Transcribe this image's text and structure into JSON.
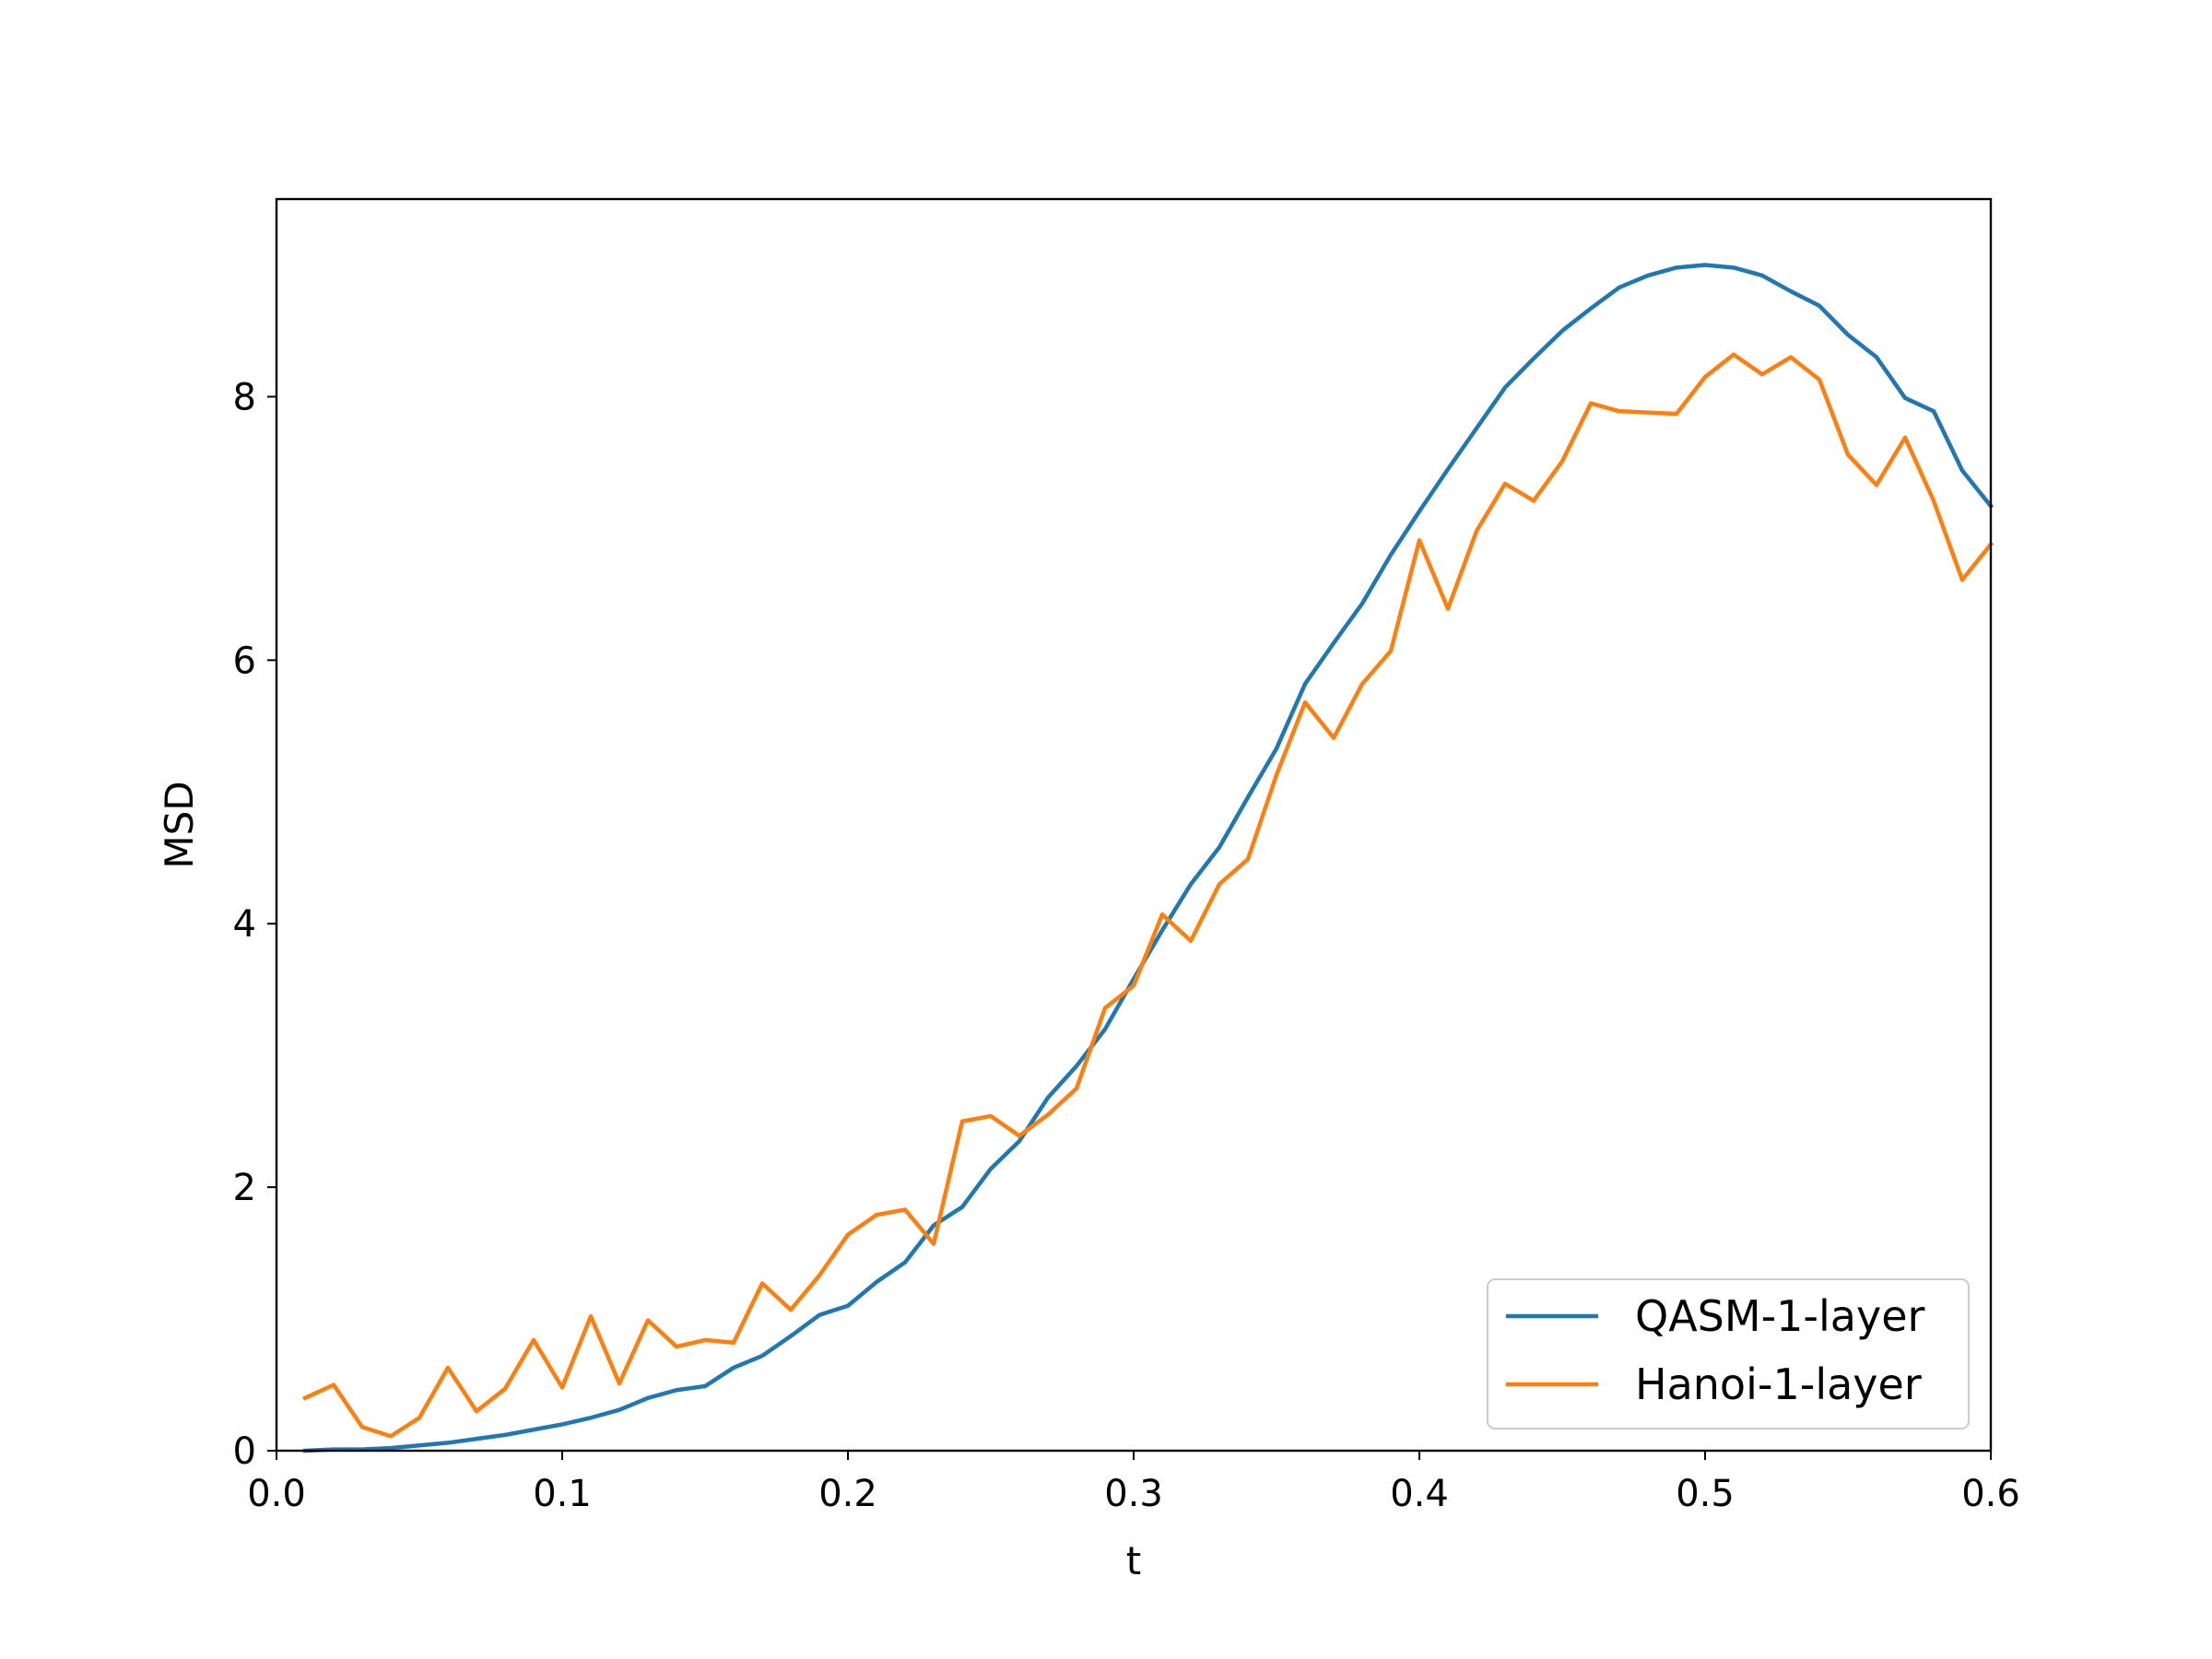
{
  "chart_data": {
    "type": "line",
    "title": "",
    "xlabel": "t",
    "ylabel": "MSD",
    "xlim": [
      0.0,
      0.6
    ],
    "ylim": [
      0,
      9.5
    ],
    "xticks": [
      0.0,
      0.1,
      0.2,
      0.3,
      0.4,
      0.5,
      0.6
    ],
    "xtick_labels": [
      "0.0",
      "0.1",
      "0.2",
      "0.3",
      "0.4",
      "0.5",
      "0.6"
    ],
    "yticks": [
      0,
      2,
      4,
      6,
      8
    ],
    "ytick_labels": [
      "0",
      "2",
      "4",
      "6",
      "8"
    ],
    "grid": false,
    "legend_position": "lower-right",
    "x": [
      0.01,
      0.02,
      0.03,
      0.04,
      0.05,
      0.06,
      0.07,
      0.08,
      0.09,
      0.1,
      0.11,
      0.12,
      0.13,
      0.14,
      0.15,
      0.16,
      0.17,
      0.18,
      0.19,
      0.2,
      0.21,
      0.22,
      0.23,
      0.24,
      0.25,
      0.26,
      0.27,
      0.28,
      0.29,
      0.3,
      0.31,
      0.32,
      0.33,
      0.34,
      0.35,
      0.36,
      0.37,
      0.38,
      0.39,
      0.4,
      0.41,
      0.42,
      0.43,
      0.44,
      0.45,
      0.46,
      0.47,
      0.48,
      0.49,
      0.5,
      0.51,
      0.52,
      0.53,
      0.54,
      0.55,
      0.56,
      0.57,
      0.58,
      0.59,
      0.6
    ],
    "series": [
      {
        "name": "QASM-1-layer",
        "color": "#1f77b4",
        "values": [
          0.0,
          0.01,
          0.01,
          0.02,
          0.04,
          0.06,
          0.09,
          0.12,
          0.16,
          0.2,
          0.25,
          0.31,
          0.4,
          0.46,
          0.49,
          0.63,
          0.72,
          0.87,
          1.03,
          1.1,
          1.28,
          1.43,
          1.71,
          1.85,
          2.14,
          2.35,
          2.68,
          2.92,
          3.2,
          3.58,
          3.95,
          4.3,
          4.58,
          4.96,
          5.33,
          5.82,
          6.13,
          6.43,
          6.8,
          7.13,
          7.45,
          7.76,
          8.07,
          8.29,
          8.5,
          8.67,
          8.83,
          8.92,
          8.98,
          9.0,
          8.98,
          8.92,
          8.8,
          8.69,
          8.47,
          8.3,
          7.99,
          7.89,
          7.44,
          7.17
        ]
      },
      {
        "name": "Hanoi-1-layer",
        "color": "#ff7f0e",
        "values": [
          0.4,
          0.5,
          0.18,
          0.11,
          0.25,
          0.63,
          0.3,
          0.47,
          0.84,
          0.48,
          1.02,
          0.51,
          0.99,
          0.79,
          0.84,
          0.82,
          1.27,
          1.07,
          1.33,
          1.64,
          1.79,
          1.83,
          1.57,
          2.5,
          2.54,
          2.39,
          2.55,
          2.75,
          3.36,
          3.53,
          4.07,
          3.87,
          4.3,
          4.49,
          5.13,
          5.68,
          5.41,
          5.82,
          6.07,
          6.91,
          6.39,
          6.98,
          7.34,
          7.21,
          7.51,
          7.95,
          7.89,
          7.88,
          7.87,
          8.15,
          8.32,
          8.17,
          8.3,
          8.13,
          7.56,
          7.33,
          7.69,
          7.21,
          6.61,
          6.88
        ]
      }
    ]
  }
}
